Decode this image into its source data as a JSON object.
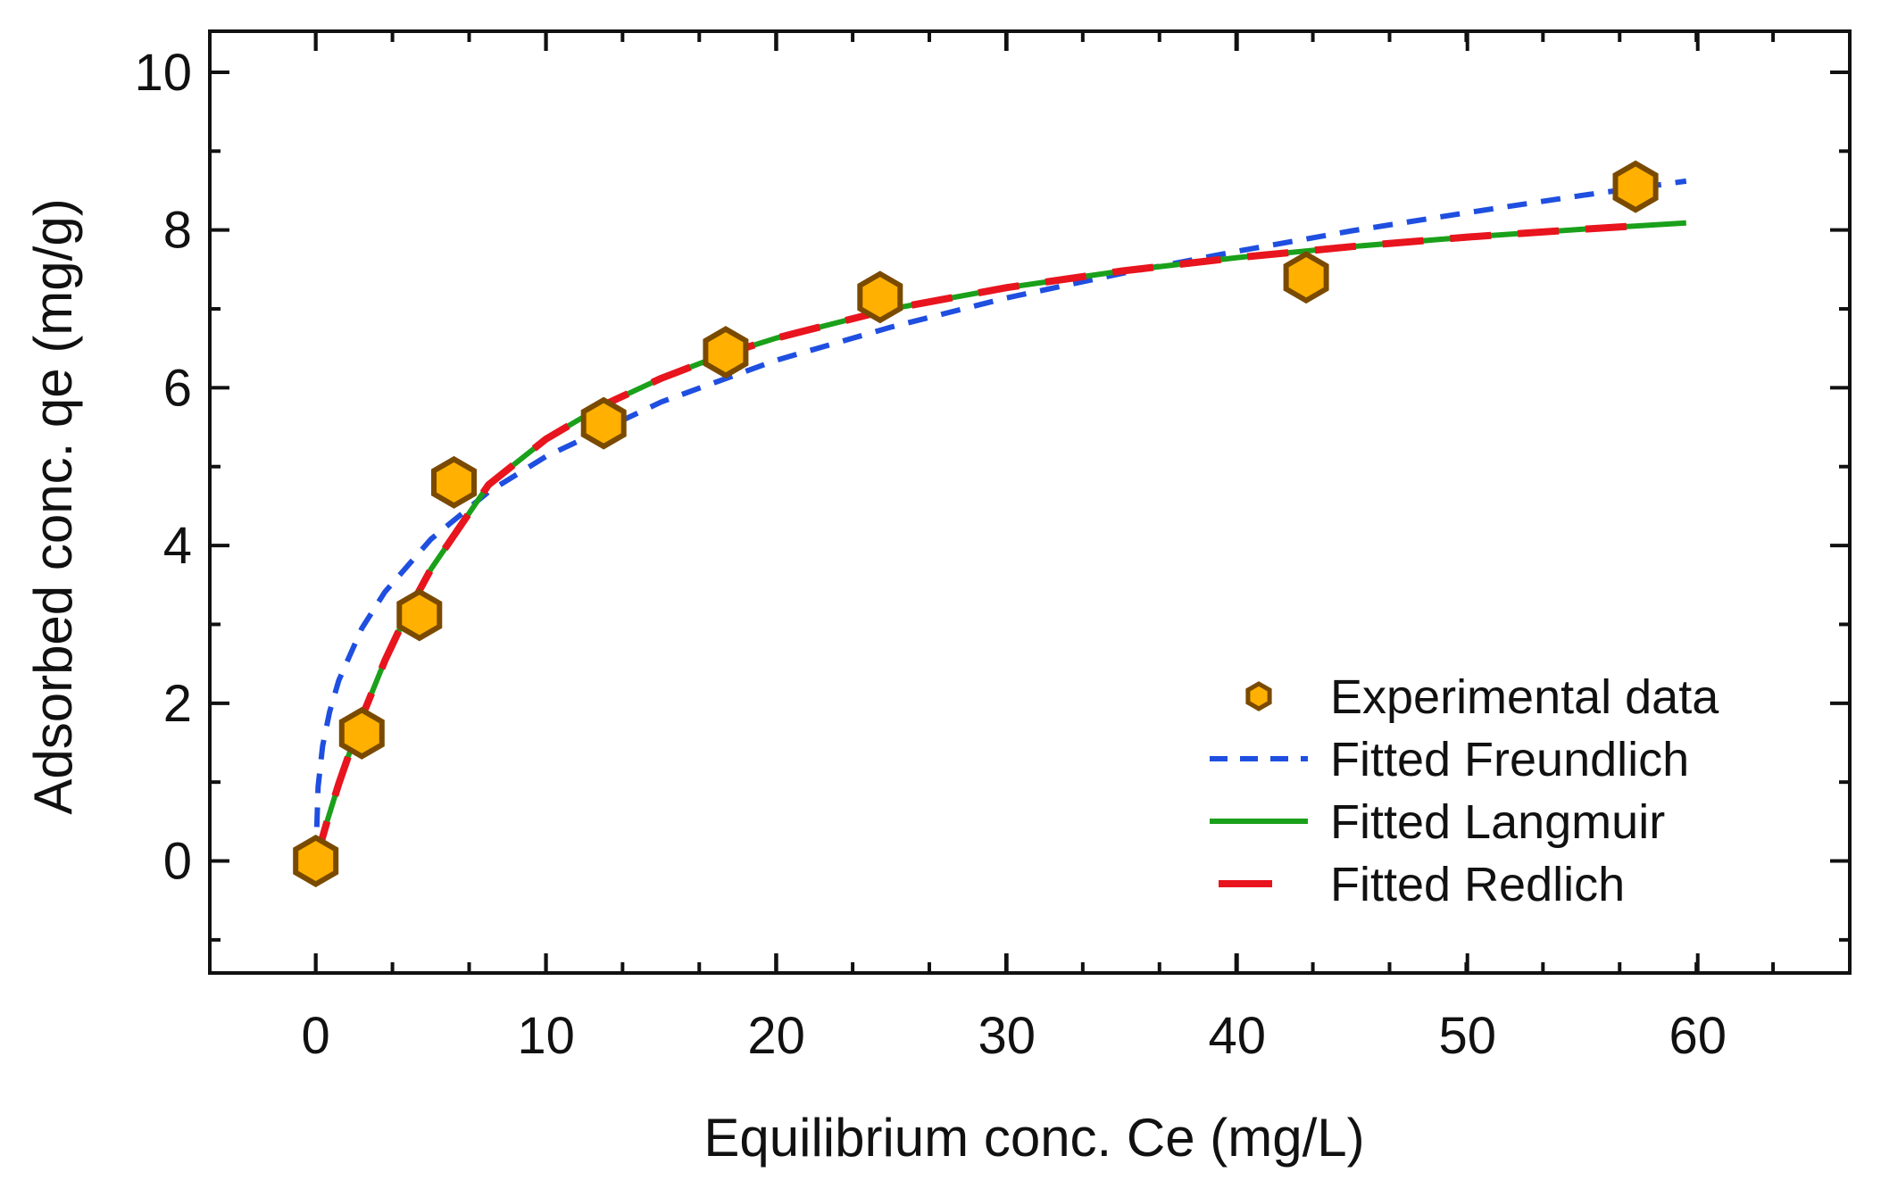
{
  "chart_data": {
    "type": "scatter",
    "title": "",
    "xlabel": "Equilibrium conc. Ce (mg/L)",
    "ylabel": "Adsorbed conc. qe (mg/g)",
    "xlim": [
      -4.6,
      66.6
    ],
    "ylim": [
      -1.42,
      10.52
    ],
    "x_ticks": [
      0,
      10,
      20,
      30,
      40,
      50,
      60
    ],
    "y_ticks": [
      0,
      2,
      4,
      6,
      8,
      10
    ],
    "x_tick_labels": [
      "0",
      "10",
      "20",
      "30",
      "40",
      "50",
      "60"
    ],
    "y_tick_labels": [
      "0",
      "2",
      "4",
      "6",
      "8",
      "10"
    ],
    "x_minor_step": 3.33,
    "y_minor_step": 1,
    "grid": false,
    "legend_position": "bottom-right",
    "series": [
      {
        "name": "Experimental data",
        "kind": "points",
        "marker": "hexagon",
        "color": "#FFB000",
        "edge_color": "#7A4A00",
        "x": [
          0,
          2,
          4.5,
          6,
          12.5,
          17.8,
          24.5,
          43,
          57.3
        ],
        "y": [
          0,
          1.62,
          3.12,
          4.8,
          5.55,
          6.45,
          7.15,
          7.4,
          8.55
        ]
      },
      {
        "name": "Fitted Freundlich",
        "kind": "line",
        "style": "dashed",
        "color": "#1F4FE0",
        "x": [
          0,
          0.1,
          0.3,
          0.6,
          1,
          2,
          3,
          5,
          7.5,
          10,
          15,
          20,
          25,
          30,
          35,
          40,
          45,
          50,
          55,
          59.5
        ],
        "y": [
          0,
          0.94,
          1.46,
          1.89,
          2.29,
          2.95,
          3.41,
          4.08,
          4.68,
          5.13,
          5.82,
          6.35,
          6.77,
          7.14,
          7.45,
          7.73,
          7.99,
          8.22,
          8.44,
          8.62
        ]
      },
      {
        "name": "Fitted Langmuir",
        "kind": "line",
        "style": "solid",
        "color": "#1AA01A",
        "x": [
          0,
          0.5,
          1,
          2,
          3,
          4,
          5,
          7.5,
          10,
          12.5,
          15,
          17.5,
          20,
          25,
          30,
          35,
          40,
          45,
          50,
          55,
          59.5
        ],
        "y": [
          0,
          0.51,
          0.98,
          1.82,
          2.54,
          3.16,
          3.7,
          4.77,
          5.35,
          5.78,
          6.12,
          6.4,
          6.63,
          7.0,
          7.27,
          7.48,
          7.65,
          7.79,
          7.91,
          8.01,
          8.09
        ]
      },
      {
        "name": "Fitted Redlich",
        "kind": "line",
        "style": "long-dashed",
        "color": "#E8141E",
        "x": [
          0,
          0.5,
          1,
          2,
          3,
          4,
          5,
          7.5,
          10,
          12.5,
          15,
          17.5,
          20,
          25,
          30,
          35,
          40,
          45,
          50,
          55,
          57.8
        ],
        "y": [
          0,
          0.51,
          0.98,
          1.82,
          2.54,
          3.16,
          3.7,
          4.77,
          5.35,
          5.78,
          6.12,
          6.4,
          6.63,
          7.0,
          7.27,
          7.48,
          7.65,
          7.79,
          7.91,
          8.01,
          8.06
        ]
      }
    ]
  }
}
